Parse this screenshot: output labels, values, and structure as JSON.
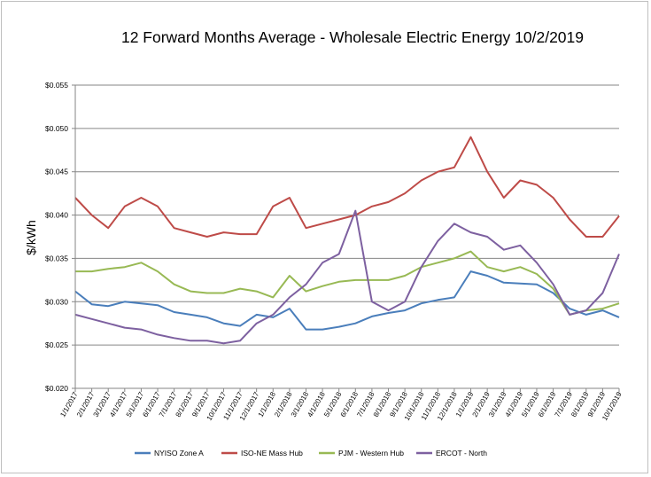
{
  "chart_data": {
    "type": "line",
    "title": "12 Forward Months Average - Wholesale Electric Energy 10/2/2019",
    "xlabel": "",
    "ylabel": "$/kWh",
    "ylim": [
      0.02,
      0.055
    ],
    "yticks": [
      "$0.020",
      "$0.025",
      "$0.030",
      "$0.035",
      "$0.040",
      "$0.045",
      "$0.050",
      "$0.055"
    ],
    "xlim": [
      "1/1/2017",
      "10/1/2019"
    ],
    "xticks": [
      "1/1/2017",
      "2/1/2017",
      "3/1/2017",
      "4/1/2017",
      "5/1/2017",
      "6/1/2017",
      "7/1/2017",
      "8/1/2017",
      "9/1/2017",
      "10/1/2017",
      "11/1/2017",
      "12/1/2017",
      "1/1/2018",
      "2/1/2018",
      "3/1/2018",
      "4/1/2018",
      "5/1/2018",
      "6/1/2018",
      "7/1/2018",
      "8/1/2018",
      "9/1/2018",
      "10/1/2018",
      "11/1/2018",
      "12/1/2018",
      "1/1/2019",
      "2/1/2019",
      "3/1/2019",
      "4/1/2019",
      "5/1/2019",
      "6/1/2019",
      "7/1/2019",
      "8/1/2019",
      "9/1/2019",
      "10/1/2019"
    ],
    "grid": "horizontal",
    "legend_position": "bottom",
    "x": [
      "1/1/2017",
      "2/1/2017",
      "3/1/2017",
      "4/1/2017",
      "5/1/2017",
      "6/1/2017",
      "7/1/2017",
      "8/1/2017",
      "9/1/2017",
      "10/1/2017",
      "11/1/2017",
      "12/1/2017",
      "1/1/2018",
      "2/1/2018",
      "3/1/2018",
      "4/1/2018",
      "5/1/2018",
      "6/1/2018",
      "7/1/2018",
      "8/1/2018",
      "9/1/2018",
      "10/1/2018",
      "11/1/2018",
      "12/1/2018",
      "1/1/2019",
      "2/1/2019",
      "3/1/2019",
      "4/1/2019",
      "5/1/2019",
      "6/1/2019",
      "7/1/2019",
      "8/1/2019",
      "9/1/2019",
      "10/1/2019"
    ],
    "series": [
      {
        "name": "NYISO Zone A",
        "color": "#4a7ebb",
        "values": [
          0.0312,
          0.0297,
          0.0295,
          0.03,
          0.0298,
          0.0296,
          0.0288,
          0.0285,
          0.0282,
          0.0275,
          0.0272,
          0.0285,
          0.0282,
          0.0292,
          0.0268,
          0.0268,
          0.0271,
          0.0275,
          0.0283,
          0.0287,
          0.029,
          0.0298,
          0.0302,
          0.0305,
          0.0335,
          0.033,
          0.0322,
          0.0321,
          0.032,
          0.031,
          0.0292,
          0.0285,
          0.029,
          0.0282
        ]
      },
      {
        "name": "ISO-NE Mass Hub",
        "color": "#be4b48",
        "values": [
          0.042,
          0.04,
          0.0385,
          0.041,
          0.042,
          0.041,
          0.0385,
          0.038,
          0.0375,
          0.038,
          0.0378,
          0.0378,
          0.041,
          0.042,
          0.0385,
          0.039,
          0.0395,
          0.04,
          0.041,
          0.0415,
          0.0425,
          0.044,
          0.045,
          0.0455,
          0.049,
          0.045,
          0.042,
          0.044,
          0.0435,
          0.042,
          0.0395,
          0.0375,
          0.0375,
          0.0399
        ]
      },
      {
        "name": "PJM - Western Hub",
        "color": "#98b954",
        "values": [
          0.0335,
          0.0335,
          0.0338,
          0.034,
          0.0345,
          0.0335,
          0.032,
          0.0312,
          0.031,
          0.031,
          0.0315,
          0.0312,
          0.0305,
          0.033,
          0.0312,
          0.0318,
          0.0323,
          0.0325,
          0.0325,
          0.0325,
          0.033,
          0.034,
          0.0345,
          0.035,
          0.0358,
          0.034,
          0.0335,
          0.034,
          0.0332,
          0.0315,
          0.0285,
          0.029,
          0.0292,
          0.0298
        ]
      },
      {
        "name": "ERCOT - North",
        "color": "#7d60a0",
        "values": [
          0.0285,
          0.028,
          0.0275,
          0.027,
          0.0268,
          0.0262,
          0.0258,
          0.0255,
          0.0255,
          0.0252,
          0.0255,
          0.0275,
          0.0285,
          0.0305,
          0.032,
          0.0345,
          0.0355,
          0.0405,
          0.03,
          0.029,
          0.03,
          0.034,
          0.037,
          0.039,
          0.038,
          0.0375,
          0.036,
          0.0365,
          0.0345,
          0.032,
          0.0285,
          0.029,
          0.031,
          0.0355
        ]
      }
    ]
  }
}
